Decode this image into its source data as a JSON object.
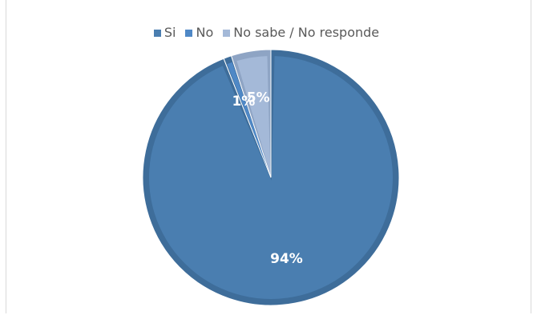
{
  "chart_data": {
    "type": "pie",
    "title": "",
    "categories": [
      "Si",
      "No",
      "No sabe / No responde"
    ],
    "values": [
      94,
      1,
      5
    ],
    "labels": [
      "94%",
      "1%",
      "5%"
    ],
    "colors": [
      "#4a7eb0",
      "#4f88c6",
      "#a4b9d8"
    ],
    "edge_colors": [
      "#3e6d9a",
      "#3e6d9a",
      "#8ea4c4"
    ],
    "legend_position": "top"
  }
}
